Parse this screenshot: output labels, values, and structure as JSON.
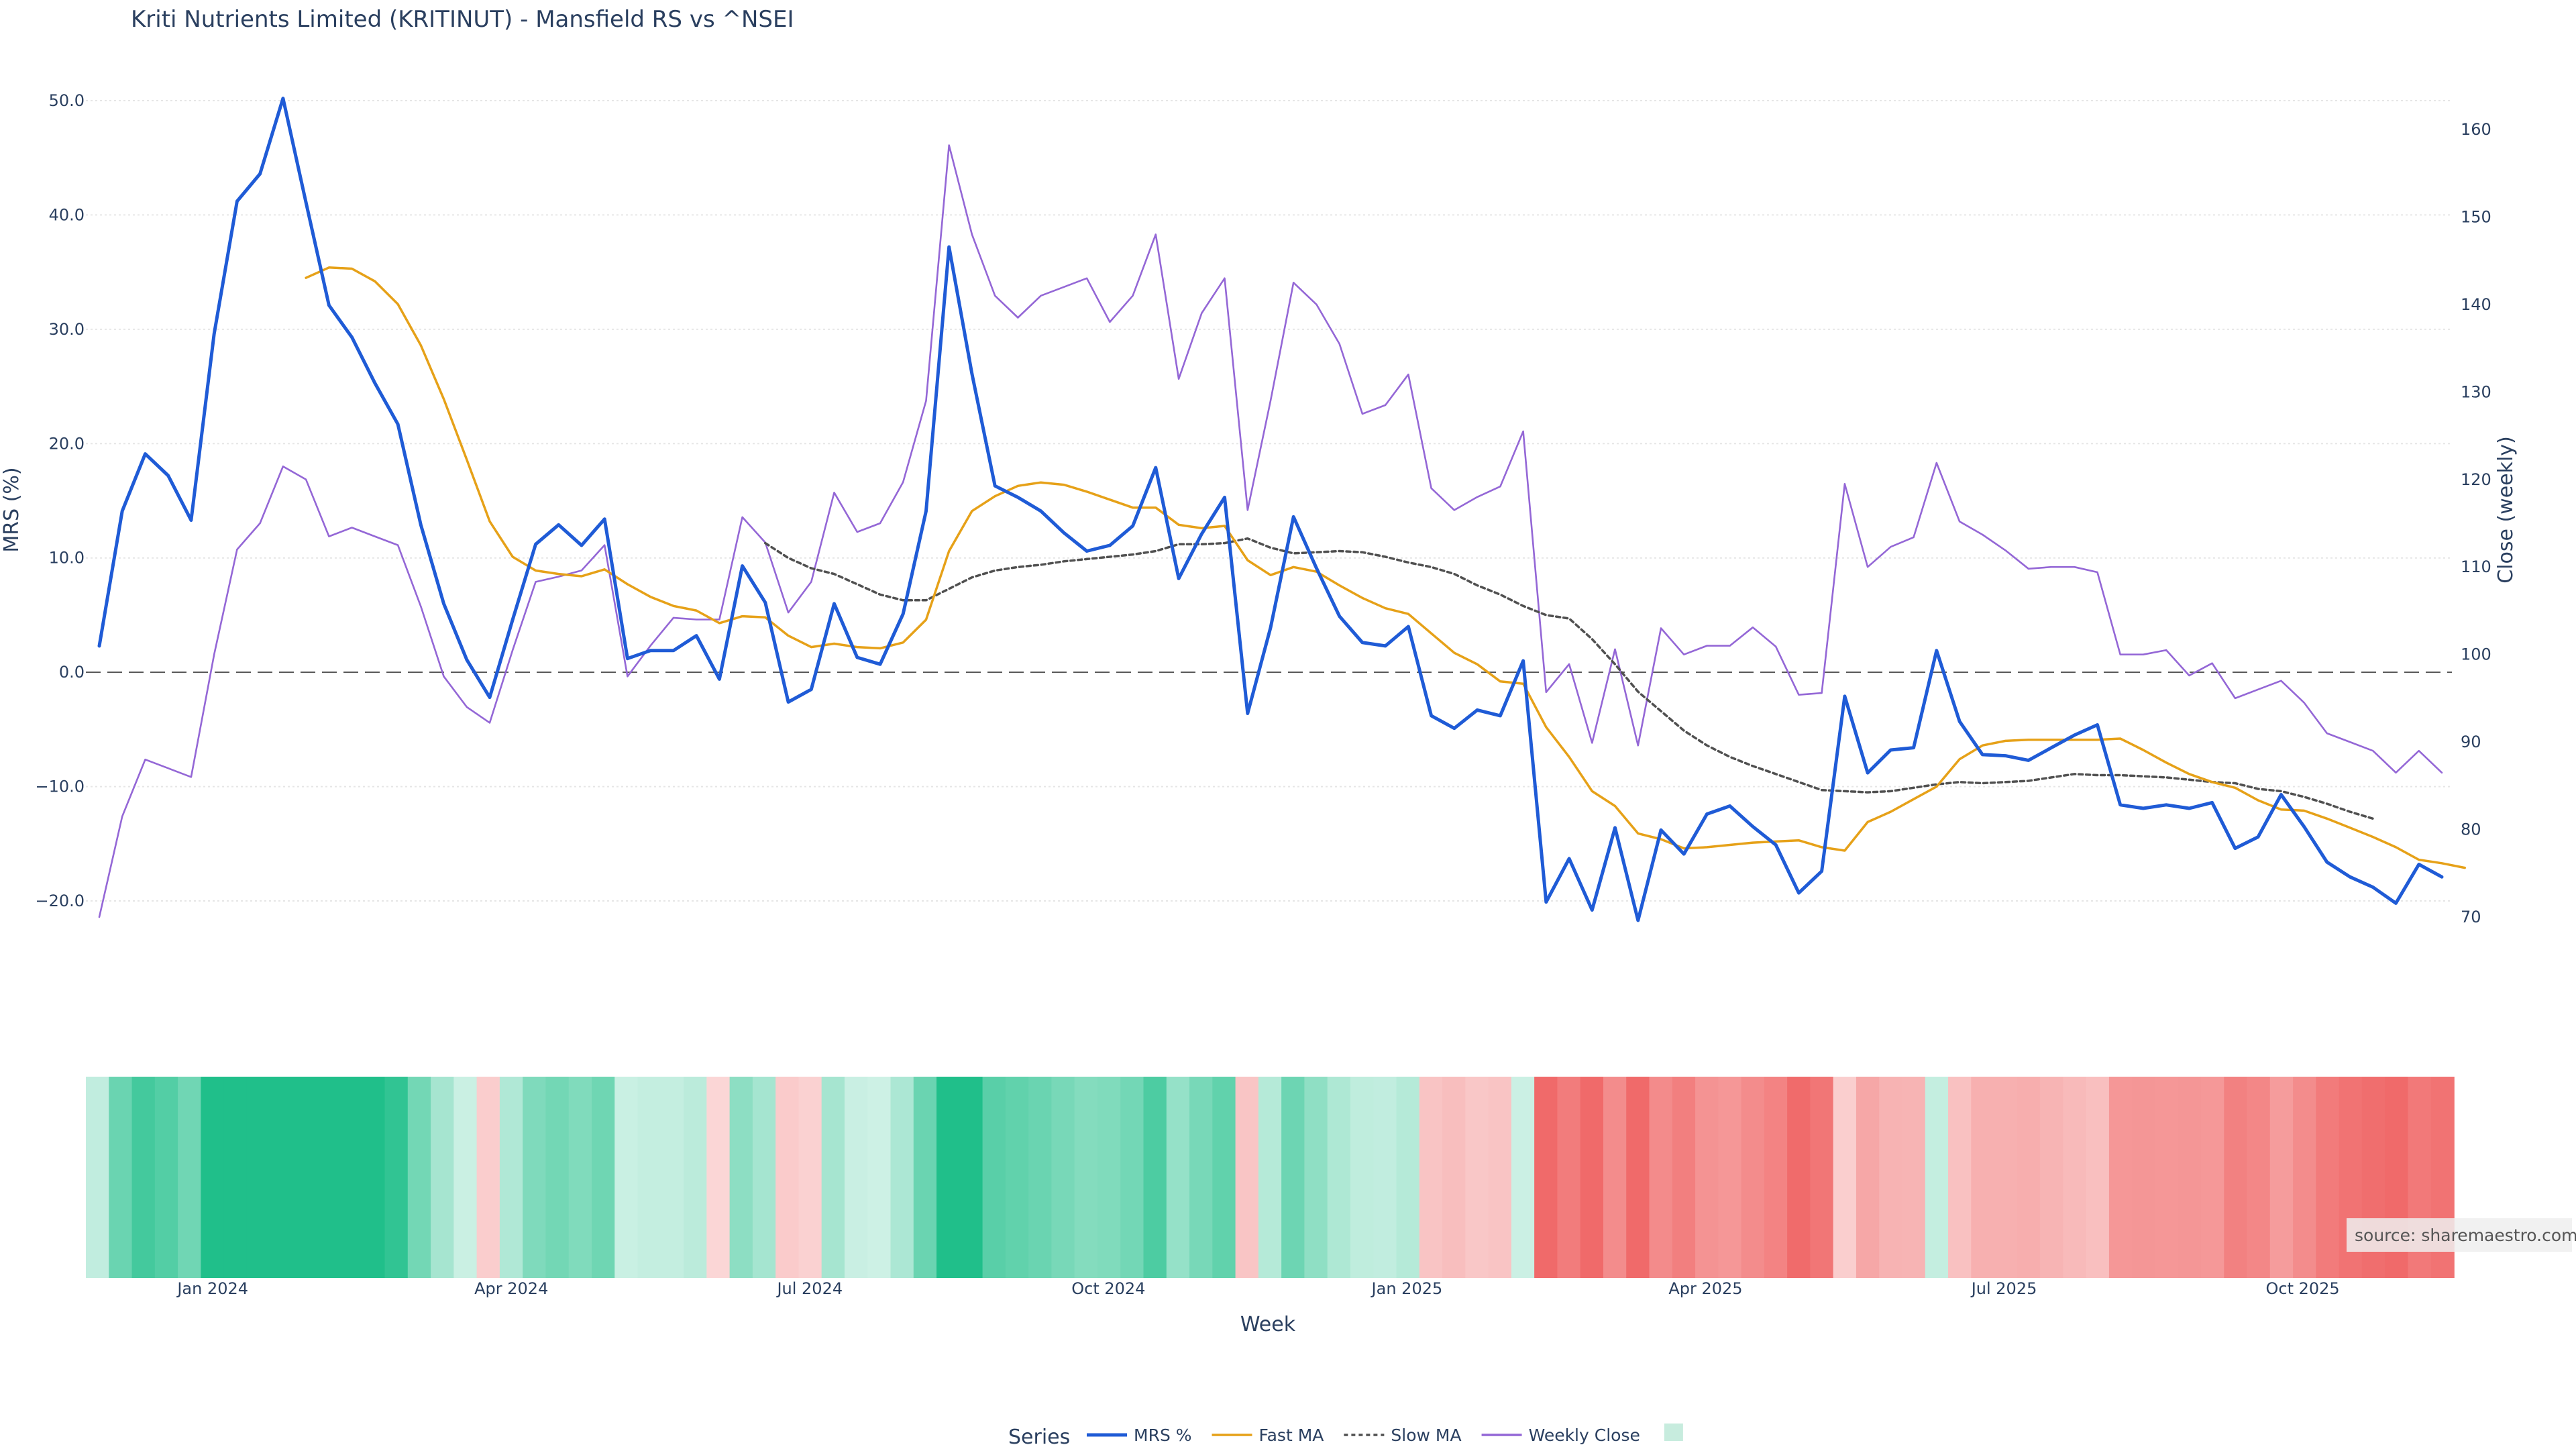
{
  "chart_data": {
    "type": "line",
    "title": "Kriti Nutrients Limited (KRITINUT) - Mansfield RS vs ^NSEI",
    "xlabel": "Week",
    "ylabel_left": "MRS (%)",
    "ylabel_right": "Close (weekly)",
    "ylim_left": [
      -23,
      51
    ],
    "ylim_right": [
      68,
      161
    ],
    "yticks_left": [
      "50.0",
      "40.0",
      "30.0",
      "20.0",
      "10.0",
      "0.0",
      "−10.0",
      "−20.0"
    ],
    "yticks_right": [
      "160",
      "150",
      "140",
      "130",
      "120",
      "110",
      "100",
      "90",
      "80",
      "70"
    ],
    "x_tick_labels": [
      "Jan 2024",
      "Apr 2024",
      "Jul 2024",
      "Oct 2024",
      "Jan 2025",
      "Apr 2025",
      "Jul 2025",
      "Oct 2025"
    ],
    "x_tick_weeks": [
      5,
      18,
      31,
      44,
      57,
      70,
      83,
      96
    ],
    "reference_line": 0,
    "grid": true,
    "legend_title": "Series",
    "legend_position": "bottom",
    "series": [
      {
        "name": "MRS %",
        "color": "#1f5bd6",
        "axis": "left",
        "start_week": 0,
        "values": [
          2.3,
          14.1,
          19.1,
          17.2,
          13.3,
          29.6,
          41.2,
          43.6,
          50.2,
          41.1,
          32.1,
          29.3,
          25.3,
          21.7,
          12.9,
          6.0,
          1.1,
          -2.2,
          4.6,
          11.2,
          12.9,
          11.1,
          13.4,
          1.2,
          1.9,
          1.9,
          3.2,
          -0.6,
          9.3,
          6.1,
          -2.6,
          -1.5,
          6.0,
          1.3,
          0.7,
          5.1,
          14.1,
          37.2,
          26.1,
          16.3,
          15.3,
          14.1,
          12.2,
          10.6,
          11.1,
          12.8,
          17.9,
          8.2,
          12.1,
          15.3,
          -3.6,
          3.9,
          13.6,
          9.1,
          4.9,
          2.6,
          2.3,
          4.0,
          -3.8,
          -4.9,
          -3.3,
          -3.8,
          1.0,
          -20.1,
          -16.3,
          -20.8,
          -13.6,
          -21.7,
          -13.8,
          -15.9,
          -12.4,
          -11.7,
          -13.5,
          -15.1,
          -19.3,
          -17.4,
          -2.1,
          -8.8,
          -6.8,
          -6.6,
          1.9,
          -4.3,
          -7.2,
          -7.3,
          -7.7,
          -6.6,
          -5.5,
          -4.6,
          -11.6,
          -11.9,
          -11.6,
          -11.9,
          -11.4,
          -15.4,
          -14.4,
          -10.7,
          -13.5,
          -16.6,
          -17.9,
          -18.8,
          -20.2,
          -16.8,
          -17.9
        ]
      },
      {
        "name": "Fast MA",
        "color": "#e6a118",
        "axis": "left",
        "start_week": 9,
        "values": [
          34.5,
          35.4,
          35.3,
          34.2,
          32.2,
          28.6,
          23.9,
          18.6,
          13.2,
          10.1,
          8.9,
          8.6,
          8.4,
          9.0,
          7.7,
          6.6,
          5.8,
          5.4,
          4.3,
          4.9,
          4.8,
          3.2,
          2.2,
          2.5,
          2.2,
          2.1,
          2.6,
          4.6,
          10.6,
          14.1,
          15.4,
          16.3,
          16.6,
          16.4,
          15.8,
          15.1,
          14.4,
          14.4,
          12.9,
          12.6,
          12.8,
          9.8,
          8.5,
          9.2,
          8.8,
          7.6,
          6.5,
          5.6,
          5.1,
          3.4,
          1.7,
          0.7,
          -0.8,
          -1.0,
          -4.8,
          -7.4,
          -10.4,
          -11.7,
          -14.1,
          -14.6,
          -15.4,
          -15.3,
          -15.1,
          -14.9,
          -14.8,
          -14.7,
          -15.3,
          -15.6,
          -13.1,
          -12.2,
          -11.1,
          -10.0,
          -7.6,
          -6.4,
          -6.0,
          -5.9,
          -5.9,
          -5.9,
          -5.9,
          -5.8,
          -6.8,
          -7.9,
          -8.9,
          -9.6,
          -10.1,
          -11.2,
          -12.0,
          -12.1,
          -12.8,
          -13.6,
          -14.4,
          -15.3,
          -16.4,
          -16.7,
          -17.1
        ]
      },
      {
        "name": "Slow MA",
        "color": "#505050",
        "axis": "left",
        "dash": "6,5",
        "start_week": 29,
        "values": [
          11.3,
          10.0,
          9.1,
          8.6,
          7.7,
          6.8,
          6.3,
          6.3,
          7.3,
          8.3,
          8.9,
          9.2,
          9.4,
          9.7,
          9.9,
          10.1,
          10.3,
          10.6,
          11.2,
          11.2,
          11.3,
          11.7,
          10.9,
          10.4,
          10.5,
          10.6,
          10.5,
          10.1,
          9.6,
          9.2,
          8.6,
          7.6,
          6.8,
          5.8,
          5.0,
          4.7,
          2.9,
          0.7,
          -1.7,
          -3.4,
          -5.1,
          -6.4,
          -7.4,
          -8.2,
          -8.9,
          -9.6,
          -10.3,
          -10.4,
          -10.5,
          -10.4,
          -10.1,
          -9.8,
          -9.6,
          -9.7,
          -9.6,
          -9.5,
          -9.2,
          -8.9,
          -9.0,
          -9.0,
          -9.1,
          -9.2,
          -9.4,
          -9.6,
          -9.7,
          -10.2,
          -10.4,
          -10.9,
          -11.5,
          -12.2,
          -12.8
        ]
      },
      {
        "name": "Weekly Close",
        "color": "#9467d6",
        "axis": "right",
        "start_week": 0,
        "values": [
          70.0,
          81.5,
          88.0,
          87.0,
          86.0,
          100.0,
          112.0,
          115.0,
          121.5,
          120.0,
          113.5,
          114.5,
          113.5,
          112.5,
          105.5,
          97.5,
          94.0,
          92.2,
          100.5,
          108.3,
          108.9,
          109.6,
          112.5,
          97.5,
          101.0,
          104.2,
          104.0,
          104.0,
          115.7,
          112.8,
          104.8,
          108.3,
          118.5,
          114.0,
          115.0,
          119.7,
          129.0,
          158.2,
          148.0,
          141.0,
          138.5,
          141.0,
          142.0,
          143.0,
          138.0,
          141.0,
          148.0,
          131.5,
          139.0,
          143.0,
          116.5,
          129.0,
          142.5,
          140.0,
          135.5,
          127.5,
          128.5,
          132.0,
          119.0,
          116.5,
          118.0,
          119.2,
          125.5,
          95.7,
          98.9,
          89.9,
          100.6,
          89.6,
          103.0,
          100.0,
          101.0,
          101.0,
          103.1,
          100.9,
          95.4,
          95.6,
          119.5,
          110.0,
          112.3,
          113.4,
          121.9,
          115.2,
          113.7,
          111.9,
          109.8,
          110.0,
          110.0,
          109.4,
          100.0,
          100.0,
          100.5,
          97.6,
          99.0,
          95.0,
          96.0,
          97.0,
          94.5,
          91.0,
          90.0,
          89.0,
          86.5,
          89.0,
          86.5
        ]
      }
    ],
    "heatmap": {
      "description": "MRS % per week as color strip",
      "positive_color": "#20bf8a",
      "negative_color": "#f06a6a"
    }
  },
  "source_label": "source: sharemaestro.com"
}
